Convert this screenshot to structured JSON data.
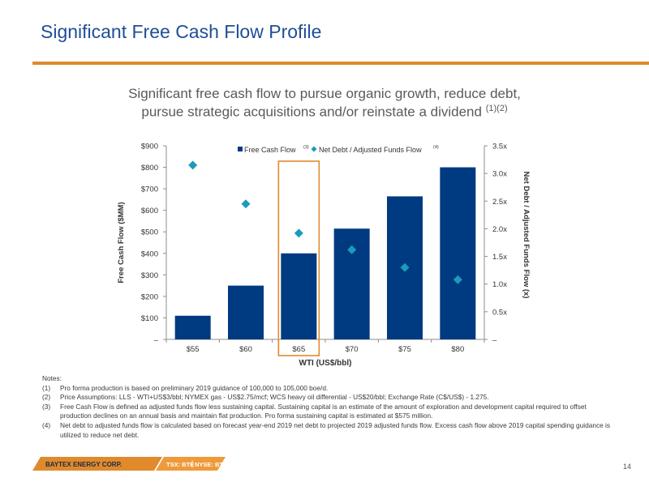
{
  "slide": {
    "title": "Significant Free Cash Flow Profile",
    "subtitle_line1": "Significant free cash flow to pursue organic growth, reduce debt,",
    "subtitle_line2": "pursue strategic acquisitions and/or reinstate a dividend",
    "subtitle_notes": "(1)(2)",
    "page_number": "14"
  },
  "colors": {
    "brand_blue": "#1f4e96",
    "bar": "#003a80",
    "diamond": "#1a9bbb",
    "highlight": "#e08a2c"
  },
  "chart_data": {
    "type": "bar",
    "categories": [
      "$55",
      "$60",
      "$65",
      "$70",
      "$75",
      "$80"
    ],
    "series": [
      {
        "name": "Free Cash Flow",
        "name_note": "(3)",
        "type": "bar",
        "axis": "left",
        "values": [
          110,
          250,
          400,
          515,
          665,
          800
        ]
      },
      {
        "name": "Net Debt / Adjusted Funds Flow",
        "name_note": "(4)",
        "type": "scatter",
        "axis": "right",
        "values": [
          3.15,
          2.45,
          1.92,
          1.62,
          1.3,
          1.08
        ]
      }
    ],
    "xlabel": "WTI (US$/bbl)",
    "ylabel": "Free Cash Flow ($MM)",
    "y2label": "Net Debt / Adjusted Funds Flow (x)",
    "ylim": [
      0,
      900
    ],
    "y2lim": [
      0,
      3.5
    ],
    "yticks": [
      "–",
      "$100",
      "$200",
      "$300",
      "$400",
      "$500",
      "$600",
      "$700",
      "$800",
      "$900"
    ],
    "y2ticks": [
      "–",
      "0.5x",
      "1.0x",
      "1.5x",
      "2.0x",
      "2.5x",
      "3.0x",
      "3.5x"
    ],
    "highlighted_category": "$65",
    "legend_position": "top",
    "grid": false
  },
  "notes": {
    "heading": "Notes:",
    "items": [
      {
        "num": "(1)",
        "text": "Pro forma production is based on preliminary 2019 guidance of 100,000 to 105,000 boe/d."
      },
      {
        "num": "(2)",
        "text": "Price Assumptions: LLS - WTI+US$3/bbl; NYMEX gas - US$2.75/mcf; WCS heavy oil differential - US$20/bbl; Exchange Rate (C$/US$) - 1.275."
      },
      {
        "num": "(3)",
        "text": "Free Cash Flow is defined as adjusted funds flow less sustaining capital. Sustaining capital is an estimate of the amount of exploration and development capital required to offset production declines on an annual basis and maintain flat production.  Pro forma sustaining capital is estimated at $575 million."
      },
      {
        "num": "(4)",
        "text": "Net debt to adjusted funds flow is calculated based on forecast year-end 2019 net debt to projected 2019 adjusted funds flow. Excess cash flow above 2019 capital spending guidance is utilized to reduce net debt."
      }
    ]
  },
  "footer": {
    "company": "BAYTEX ENERGY CORP.",
    "ticker_tsx": "TSX: BTE",
    "ticker_nyse": "NYSE: BTE"
  }
}
